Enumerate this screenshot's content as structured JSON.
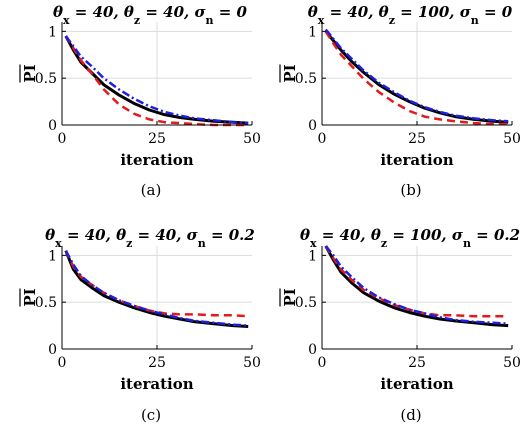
{
  "chart_data": [
    {
      "type": "line",
      "title": "θx = 40, θz = 40, σn = 0",
      "xlabel": "iteration",
      "ylabel": "PI",
      "caption": "(a)",
      "xlim": [
        0,
        50
      ],
      "ylim": [
        0,
        1.1
      ],
      "xticks": [
        0,
        25,
        50
      ],
      "yticks": [
        0,
        0.5,
        1
      ],
      "ytick_labels": [
        "0",
        "0.5",
        "1"
      ],
      "grid": true,
      "x": [
        1,
        3,
        5,
        8,
        11,
        15,
        19,
        23,
        27,
        31,
        35,
        40,
        45,
        49
      ],
      "series": [
        {
          "color": "#000000",
          "style": "solid",
          "values": [
            0.95,
            0.8,
            0.67,
            0.55,
            0.43,
            0.32,
            0.23,
            0.16,
            0.11,
            0.08,
            0.06,
            0.04,
            0.03,
            0.02
          ]
        },
        {
          "color": "#e41a1c",
          "style": "dashed",
          "values": [
            0.95,
            0.82,
            0.69,
            0.54,
            0.38,
            0.22,
            0.12,
            0.06,
            0.03,
            0.02,
            0.01,
            0.0,
            0.0,
            0.0
          ]
        },
        {
          "color": "#1f1fe0",
          "style": "dashdot",
          "values": [
            0.95,
            0.84,
            0.73,
            0.62,
            0.5,
            0.38,
            0.28,
            0.2,
            0.14,
            0.1,
            0.07,
            0.05,
            0.03,
            0.02
          ]
        }
      ]
    },
    {
      "type": "line",
      "title": "θx = 40, θz = 100, σn = 0",
      "xlabel": "iteration",
      "ylabel": "PI",
      "caption": "(b)",
      "xlim": [
        0,
        50
      ],
      "ylim": [
        0,
        1.1
      ],
      "xticks": [
        0,
        25,
        50
      ],
      "yticks": [
        0,
        0.5,
        1
      ],
      "ytick_labels": [
        "0",
        "0.5",
        "1"
      ],
      "grid": true,
      "x": [
        1,
        3,
        5,
        8,
        11,
        15,
        19,
        23,
        27,
        31,
        35,
        40,
        45,
        49
      ],
      "series": [
        {
          "color": "#000000",
          "style": "solid",
          "values": [
            1.0,
            0.9,
            0.8,
            0.67,
            0.56,
            0.43,
            0.33,
            0.25,
            0.18,
            0.13,
            0.09,
            0.06,
            0.04,
            0.03
          ]
        },
        {
          "color": "#e41a1c",
          "style": "dashed",
          "values": [
            1.0,
            0.87,
            0.75,
            0.62,
            0.49,
            0.35,
            0.24,
            0.15,
            0.09,
            0.06,
            0.04,
            0.02,
            0.01,
            0.01
          ]
        },
        {
          "color": "#1f1fe0",
          "style": "dashdot",
          "values": [
            1.02,
            0.92,
            0.82,
            0.7,
            0.58,
            0.45,
            0.35,
            0.26,
            0.19,
            0.14,
            0.1,
            0.07,
            0.05,
            0.04
          ]
        }
      ]
    },
    {
      "type": "line",
      "title": "θx = 40, θz = 40, σn = 0.2",
      "xlabel": "iteration",
      "ylabel": "PI",
      "caption": "(c)",
      "xlim": [
        0,
        50
      ],
      "ylim": [
        0,
        1.1
      ],
      "xticks": [
        0,
        25,
        50
      ],
      "yticks": [
        0,
        0.5,
        1
      ],
      "ytick_labels": [
        "0",
        "0.5",
        "1"
      ],
      "grid": true,
      "x": [
        1,
        3,
        5,
        8,
        11,
        15,
        19,
        23,
        27,
        31,
        35,
        40,
        45,
        49
      ],
      "series": [
        {
          "color": "#000000",
          "style": "solid",
          "values": [
            1.05,
            0.85,
            0.74,
            0.65,
            0.57,
            0.5,
            0.44,
            0.39,
            0.35,
            0.32,
            0.29,
            0.27,
            0.25,
            0.24
          ]
        },
        {
          "color": "#e41a1c",
          "style": "dashed",
          "values": [
            1.05,
            0.88,
            0.77,
            0.68,
            0.6,
            0.52,
            0.46,
            0.41,
            0.38,
            0.37,
            0.37,
            0.36,
            0.36,
            0.35
          ]
        },
        {
          "color": "#1f1fe0",
          "style": "dashdot",
          "values": [
            1.05,
            0.9,
            0.78,
            0.68,
            0.6,
            0.52,
            0.46,
            0.41,
            0.37,
            0.33,
            0.3,
            0.28,
            0.26,
            0.25
          ]
        }
      ]
    },
    {
      "type": "line",
      "title": "θx = 40, θz = 100, σn = 0.2",
      "xlabel": "iteration",
      "ylabel": "PI",
      "caption": "(d)",
      "xlim": [
        0,
        50
      ],
      "ylim": [
        0,
        1.1
      ],
      "xticks": [
        0,
        25,
        50
      ],
      "yticks": [
        0,
        0.5,
        1
      ],
      "ytick_labels": [
        "0",
        "0.5",
        "1"
      ],
      "grid": true,
      "x": [
        1,
        3,
        5,
        8,
        11,
        15,
        19,
        23,
        27,
        31,
        35,
        40,
        45,
        49
      ],
      "series": [
        {
          "color": "#000000",
          "style": "solid",
          "values": [
            1.1,
            0.95,
            0.82,
            0.7,
            0.6,
            0.51,
            0.44,
            0.39,
            0.35,
            0.32,
            0.3,
            0.28,
            0.26,
            0.25
          ]
        },
        {
          "color": "#e41a1c",
          "style": "dashed",
          "values": [
            1.1,
            0.97,
            0.85,
            0.73,
            0.63,
            0.54,
            0.47,
            0.42,
            0.38,
            0.36,
            0.36,
            0.35,
            0.35,
            0.35
          ]
        },
        {
          "color": "#1f1fe0",
          "style": "dashdot",
          "values": [
            1.1,
            1.0,
            0.88,
            0.76,
            0.65,
            0.55,
            0.48,
            0.42,
            0.38,
            0.34,
            0.31,
            0.29,
            0.28,
            0.27
          ]
        }
      ]
    }
  ]
}
